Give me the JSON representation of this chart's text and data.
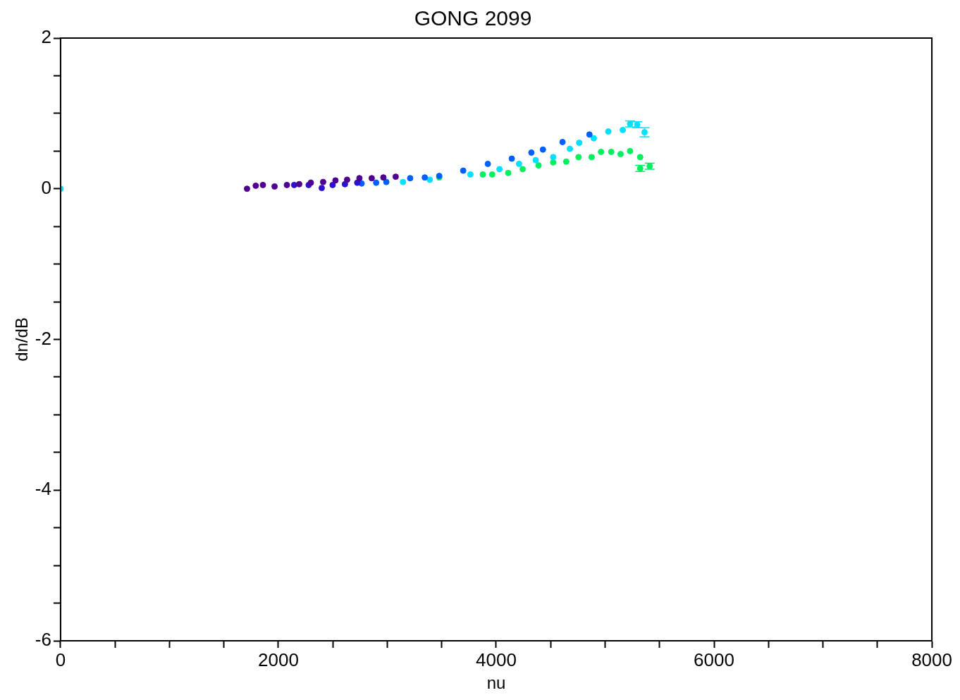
{
  "chart_data": {
    "type": "scatter",
    "title": "GONG 2099",
    "xlabel": "nu",
    "ylabel": "dn/dB",
    "xlim": [
      0,
      8000
    ],
    "ylim": [
      -6,
      2
    ],
    "xticks": [
      0,
      {
        "value": 500,
        "label": null
      },
      {
        "value": 1000,
        "label": null
      },
      {
        "value": 1500,
        "label": null
      },
      2000,
      {
        "value": 2500,
        "label": null
      },
      {
        "value": 3000,
        "label": null
      },
      {
        "value": 3500,
        "label": null
      },
      4000,
      {
        "value": 4500,
        "label": null
      },
      {
        "value": 5000,
        "label": null
      },
      {
        "value": 5500,
        "label": null
      },
      6000,
      {
        "value": 6500,
        "label": null
      },
      {
        "value": 7000,
        "label": null
      },
      {
        "value": 7500,
        "label": null
      },
      8000
    ],
    "yticks": [
      -6,
      {
        "value": -5.5,
        "label": null
      },
      {
        "value": -5,
        "label": null
      },
      {
        "value": -4.5,
        "label": null
      },
      -4,
      {
        "value": -3.5,
        "label": null
      },
      {
        "value": -3,
        "label": null
      },
      {
        "value": -2.5,
        "label": null
      },
      -2,
      {
        "value": -1.5,
        "label": null
      },
      {
        "value": -1,
        "label": null
      },
      {
        "value": -0.5,
        "label": null
      },
      0,
      {
        "value": 0.5,
        "label": null
      },
      {
        "value": 1,
        "label": null
      },
      {
        "value": 1.5,
        "label": null
      },
      2
    ],
    "marker": "circle",
    "grid": false,
    "legend": false,
    "series": [
      {
        "color": "#500090",
        "x": [
          1712,
          1792,
          1858,
          1965,
          2078,
          2191,
          2298,
          2411,
          2524,
          2631,
          2744,
          2857,
          2964,
          3077
        ],
        "values": [
          0.0,
          0.04,
          0.05,
          0.03,
          0.05,
          0.06,
          0.08,
          0.09,
          0.11,
          0.12,
          0.14,
          0.14,
          0.15,
          0.16
        ]
      },
      {
        "color": "#3010d0",
        "x": [
          2145,
          2278,
          2398,
          2498,
          2611,
          2724
        ],
        "values": [
          0.05,
          0.05,
          0.01,
          0.05,
          0.06,
          0.08
        ]
      },
      {
        "color": "#0060ff",
        "x": [
          2764,
          2898,
          2991,
          3210,
          3344,
          3477,
          3697,
          3923,
          4143,
          4323,
          4429,
          4609,
          4856
        ],
        "values": [
          0.07,
          0.08,
          0.09,
          0.14,
          0.15,
          0.17,
          0.24,
          0.33,
          0.4,
          0.48,
          0.52,
          0.62,
          0.72
        ]
      },
      {
        "color": "#00e0ff",
        "x": [
          0,
          3144,
          3390,
          3763,
          4030,
          4210,
          4363,
          4523,
          4676,
          4762,
          4896,
          5029,
          5162,
          5229,
          5295,
          5362
        ],
        "values": [
          0,
          0.09,
          0.12,
          0.19,
          0.26,
          0.33,
          0.38,
          0.42,
          0.53,
          0.61,
          0.67,
          0.76,
          0.78,
          0.86,
          0.85,
          0.75
        ],
        "errors": [
          null,
          null,
          null,
          null,
          null,
          null,
          null,
          null,
          null,
          null,
          null,
          null,
          null,
          0.04,
          0.04,
          0.06
        ]
      },
      {
        "color": "#00f060",
        "x": [
          3477,
          3877,
          3963,
          4110,
          4243,
          4389,
          4523,
          4643,
          4756,
          4876,
          4962,
          5056,
          5142,
          5229,
          5322,
          5322,
          5409
        ],
        "values": [
          0.15,
          0.19,
          0.19,
          0.21,
          0.26,
          0.31,
          0.35,
          0.36,
          0.42,
          0.42,
          0.49,
          0.49,
          0.46,
          0.5,
          0.42,
          0.27,
          0.3
        ],
        "errors": [
          null,
          null,
          null,
          null,
          null,
          null,
          null,
          null,
          null,
          null,
          null,
          null,
          null,
          null,
          null,
          0.04,
          0.04
        ]
      }
    ]
  }
}
